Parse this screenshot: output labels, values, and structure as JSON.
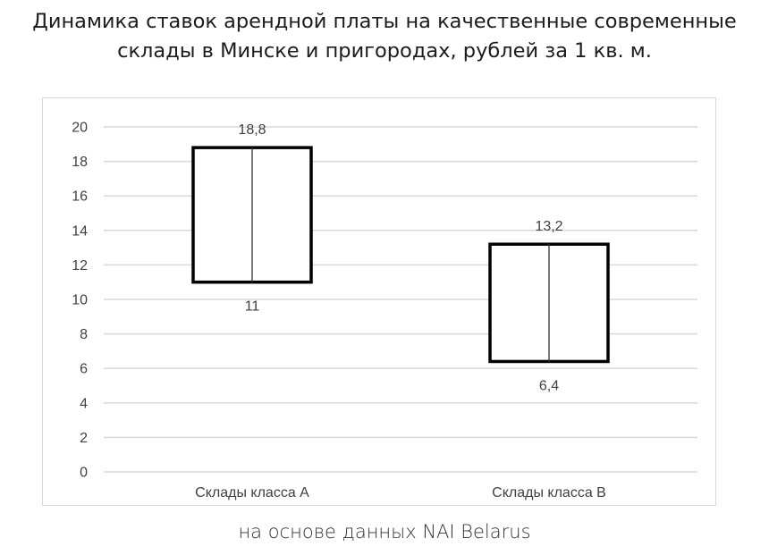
{
  "title_line1": "Динамика ставок арендной платы на качественные современные",
  "title_line2": "склады в Минске и пригородах, рублей за 1 кв. м.",
  "source": "на основе данных NAI Belarus",
  "chart_data": {
    "type": "range-bar",
    "categories": [
      "Склады класса А",
      "Склады класса В"
    ],
    "low": [
      11,
      6.4
    ],
    "high": [
      18.8,
      13.2
    ],
    "low_labels": [
      "11",
      "6,4"
    ],
    "high_labels": [
      "18,8",
      "13,2"
    ],
    "ylim": [
      0,
      20
    ],
    "yticks": [
      0,
      2,
      4,
      6,
      8,
      10,
      12,
      14,
      16,
      18,
      20
    ],
    "grid": true,
    "legend": "none",
    "colors": {
      "box_stroke": "#000000",
      "grid": "#d9d9d9",
      "text": "#404040"
    }
  }
}
